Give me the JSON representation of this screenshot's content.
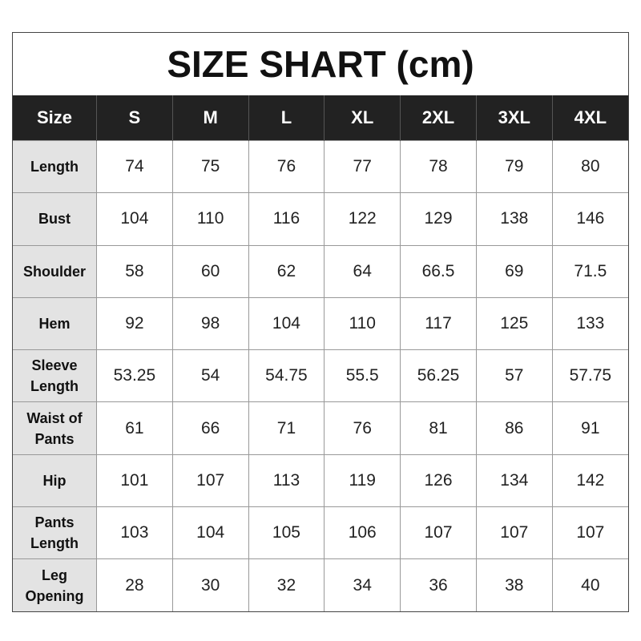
{
  "title": "SIZE SHART (cm)",
  "headers": [
    "Size",
    "S",
    "M",
    "L",
    "XL",
    "2XL",
    "3XL",
    "4XL"
  ],
  "rows": [
    {
      "label": "Length",
      "values": [
        "74",
        "75",
        "76",
        "77",
        "78",
        "79",
        "80"
      ]
    },
    {
      "label": "Bust",
      "values": [
        "104",
        "110",
        "116",
        "122",
        "129",
        "138",
        "146"
      ]
    },
    {
      "label": "Shoulder",
      "values": [
        "58",
        "60",
        "62",
        "64",
        "66.5",
        "69",
        "71.5"
      ]
    },
    {
      "label": "Hem",
      "values": [
        "92",
        "98",
        "104",
        "110",
        "117",
        "125",
        "133"
      ]
    },
    {
      "label": "Sleeve Length",
      "values": [
        "53.25",
        "54",
        "54.75",
        "55.5",
        "56.25",
        "57",
        "57.75"
      ]
    },
    {
      "label": "Waist of Pants",
      "values": [
        "61",
        "66",
        "71",
        "76",
        "81",
        "86",
        "91"
      ]
    },
    {
      "label": "Hip",
      "values": [
        "101",
        "107",
        "113",
        "119",
        "126",
        "134",
        "142"
      ]
    },
    {
      "label": "Pants Length",
      "values": [
        "103",
        "104",
        "105",
        "106",
        "107",
        "107",
        "107"
      ]
    },
    {
      "label": "Leg Opening",
      "values": [
        "28",
        "30",
        "32",
        "34",
        "36",
        "38",
        "40"
      ]
    }
  ],
  "colors": {
    "header_bg": "#222222",
    "label_bg": "#e3e3e3"
  }
}
